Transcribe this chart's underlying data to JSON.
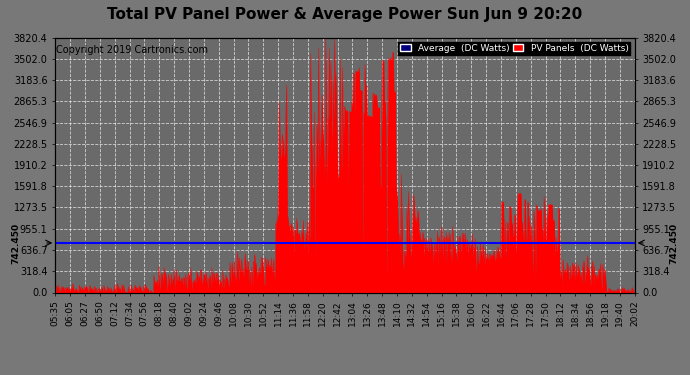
{
  "title": "Total PV Panel Power & Average Power Sun Jun 9 20:20",
  "copyright": "Copyright 2019 Cartronics.com",
  "average_value": 742.45,
  "y_max": 3820.4,
  "y_ticks": [
    0.0,
    318.4,
    636.7,
    955.1,
    1273.5,
    1591.8,
    1910.2,
    2228.5,
    2546.9,
    2865.3,
    3183.6,
    3502.0,
    3820.4
  ],
  "background_color": "#7a7a7a",
  "plot_bg_color": "#6e6e6e",
  "grid_color": "#aaaaaa",
  "fill_color": "#ff0000",
  "avg_line_color": "#0000ff",
  "legend_avg_color": "#000080",
  "legend_pv_color": "#ff0000",
  "title_fontsize": 11,
  "copyright_fontsize": 7,
  "tick_fontsize": 7,
  "x_labels": [
    "05:35",
    "06:05",
    "06:27",
    "06:50",
    "07:12",
    "07:34",
    "07:56",
    "08:18",
    "08:40",
    "09:02",
    "09:24",
    "09:46",
    "10:08",
    "10:30",
    "10:52",
    "11:14",
    "11:36",
    "11:58",
    "12:20",
    "12:42",
    "13:04",
    "13:26",
    "13:48",
    "14:10",
    "14:32",
    "14:54",
    "15:16",
    "15:38",
    "16:00",
    "16:22",
    "16:44",
    "17:06",
    "17:28",
    "17:50",
    "18:12",
    "18:34",
    "18:56",
    "19:18",
    "19:40",
    "20:02"
  ],
  "num_points": 800
}
